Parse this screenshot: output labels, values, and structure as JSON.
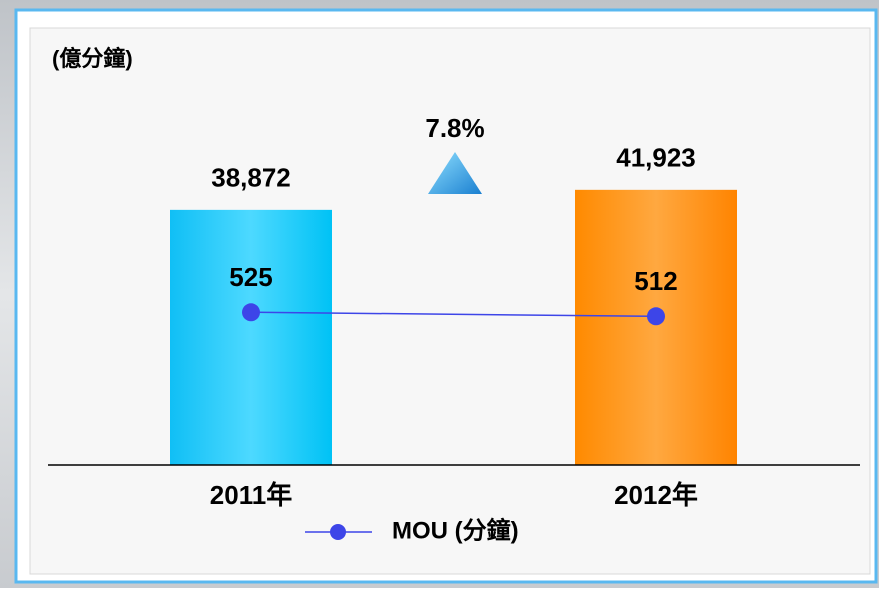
{
  "chart_data": {
    "type": "bar",
    "y_label": "(億分鐘)",
    "categories": [
      "2011年",
      "2012年"
    ],
    "values": [
      38872,
      41923
    ],
    "value_labels": [
      "38,872",
      "41,923"
    ],
    "colors": [
      "#1ec8f8",
      "#ff8c10"
    ],
    "ylim": [
      0,
      55000
    ],
    "y2lim": [
      30,
      1200
    ],
    "annotation": "7.8%",
    "series": [
      {
        "name": "MOU (分鐘)",
        "type": "line",
        "axis": "y2",
        "color": "#3d45e8",
        "values": [
          525,
          512
        ]
      }
    ]
  }
}
